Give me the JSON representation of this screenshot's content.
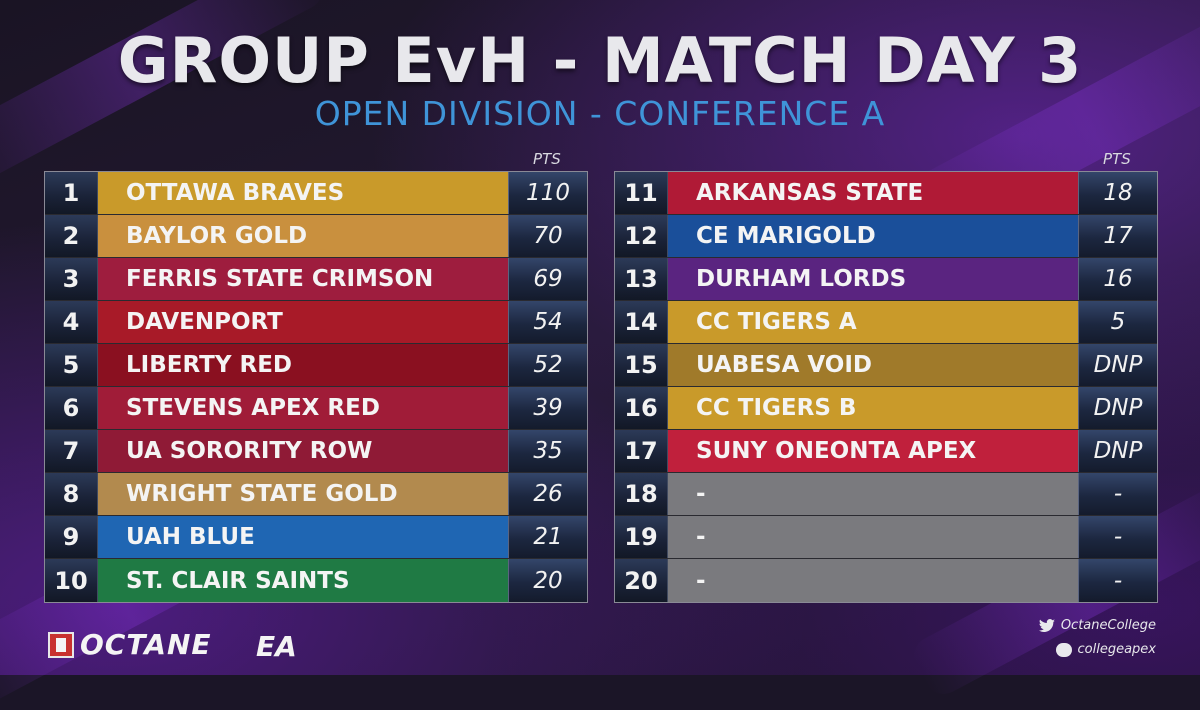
{
  "header": {
    "title": "GROUP EvH - MATCH DAY 3",
    "subtitle": "OPEN DIVISION - CONFERENCE A"
  },
  "pts_label": "PTS",
  "colors": {
    "gold": "#c99a2a",
    "light_gold": "#c9923e",
    "crimson": "#9e1d3e",
    "red": "#a81a28",
    "dark_red": "#8a1020",
    "blue": "#1f66b3",
    "green": "#1f7a44",
    "purple": "#5a2480",
    "pinkred": "#c0203c",
    "gray": "#7a7a7e",
    "accent_blue": "#3f94d8"
  },
  "left_table": [
    {
      "rank": "1",
      "team": "OTTAWA BRAVES",
      "pts": "110",
      "color": "#c99a2a"
    },
    {
      "rank": "2",
      "team": "BAYLOR GOLD",
      "pts": "70",
      "color": "#c9903e"
    },
    {
      "rank": "3",
      "team": "FERRIS STATE CRIMSON",
      "pts": "69",
      "color": "#9e1d3e"
    },
    {
      "rank": "4",
      "team": "DAVENPORT",
      "pts": "54",
      "color": "#a81a28"
    },
    {
      "rank": "5",
      "team": "LIBERTY RED",
      "pts": "52",
      "color": "#8a1020"
    },
    {
      "rank": "6",
      "team": "STEVENS APEX RED",
      "pts": "39",
      "color": "#a01c38"
    },
    {
      "rank": "7",
      "team": "UA SORORITY ROW",
      "pts": "35",
      "color": "#8f1a36"
    },
    {
      "rank": "8",
      "team": "WRIGHT STATE GOLD",
      "pts": "26",
      "color": "#b28a4e"
    },
    {
      "rank": "9",
      "team": "UAH BLUE",
      "pts": "21",
      "color": "#1f66b3"
    },
    {
      "rank": "10",
      "team": "ST. CLAIR SAINTS",
      "pts": "20",
      "color": "#1f7a44"
    }
  ],
  "right_table": [
    {
      "rank": "11",
      "team": "ARKANSAS STATE",
      "pts": "18",
      "color": "#b01a36"
    },
    {
      "rank": "12",
      "team": "CE MARIGOLD",
      "pts": "17",
      "color": "#1a4f9a"
    },
    {
      "rank": "13",
      "team": "DURHAM LORDS",
      "pts": "16",
      "color": "#5a2480"
    },
    {
      "rank": "14",
      "team": "CC TIGERS A",
      "pts": "5",
      "color": "#c99a2a"
    },
    {
      "rank": "15",
      "team": "UABESA VOID",
      "pts": "DNP",
      "color": "#a07a2a"
    },
    {
      "rank": "16",
      "team": "CC TIGERS B",
      "pts": "DNP",
      "color": "#c99a2a"
    },
    {
      "rank": "17",
      "team": "SUNY ONEONTA APEX",
      "pts": "DNP",
      "color": "#c0203c"
    },
    {
      "rank": "18",
      "team": "-",
      "pts": "-",
      "color": "#7a7a7e"
    },
    {
      "rank": "19",
      "team": "-",
      "pts": "-",
      "color": "#7a7a7e"
    },
    {
      "rank": "20",
      "team": "-",
      "pts": "-",
      "color": "#7a7a7e"
    }
  ],
  "footer": {
    "brand": "OCTANE",
    "partner": "EA",
    "twitter_handle": "OctaneCollege",
    "discord_handle": "collegeapex"
  },
  "icons": {
    "twitter": "twitter-icon",
    "discord": "discord-icon",
    "octane_logo": "octane-logo-icon"
  }
}
